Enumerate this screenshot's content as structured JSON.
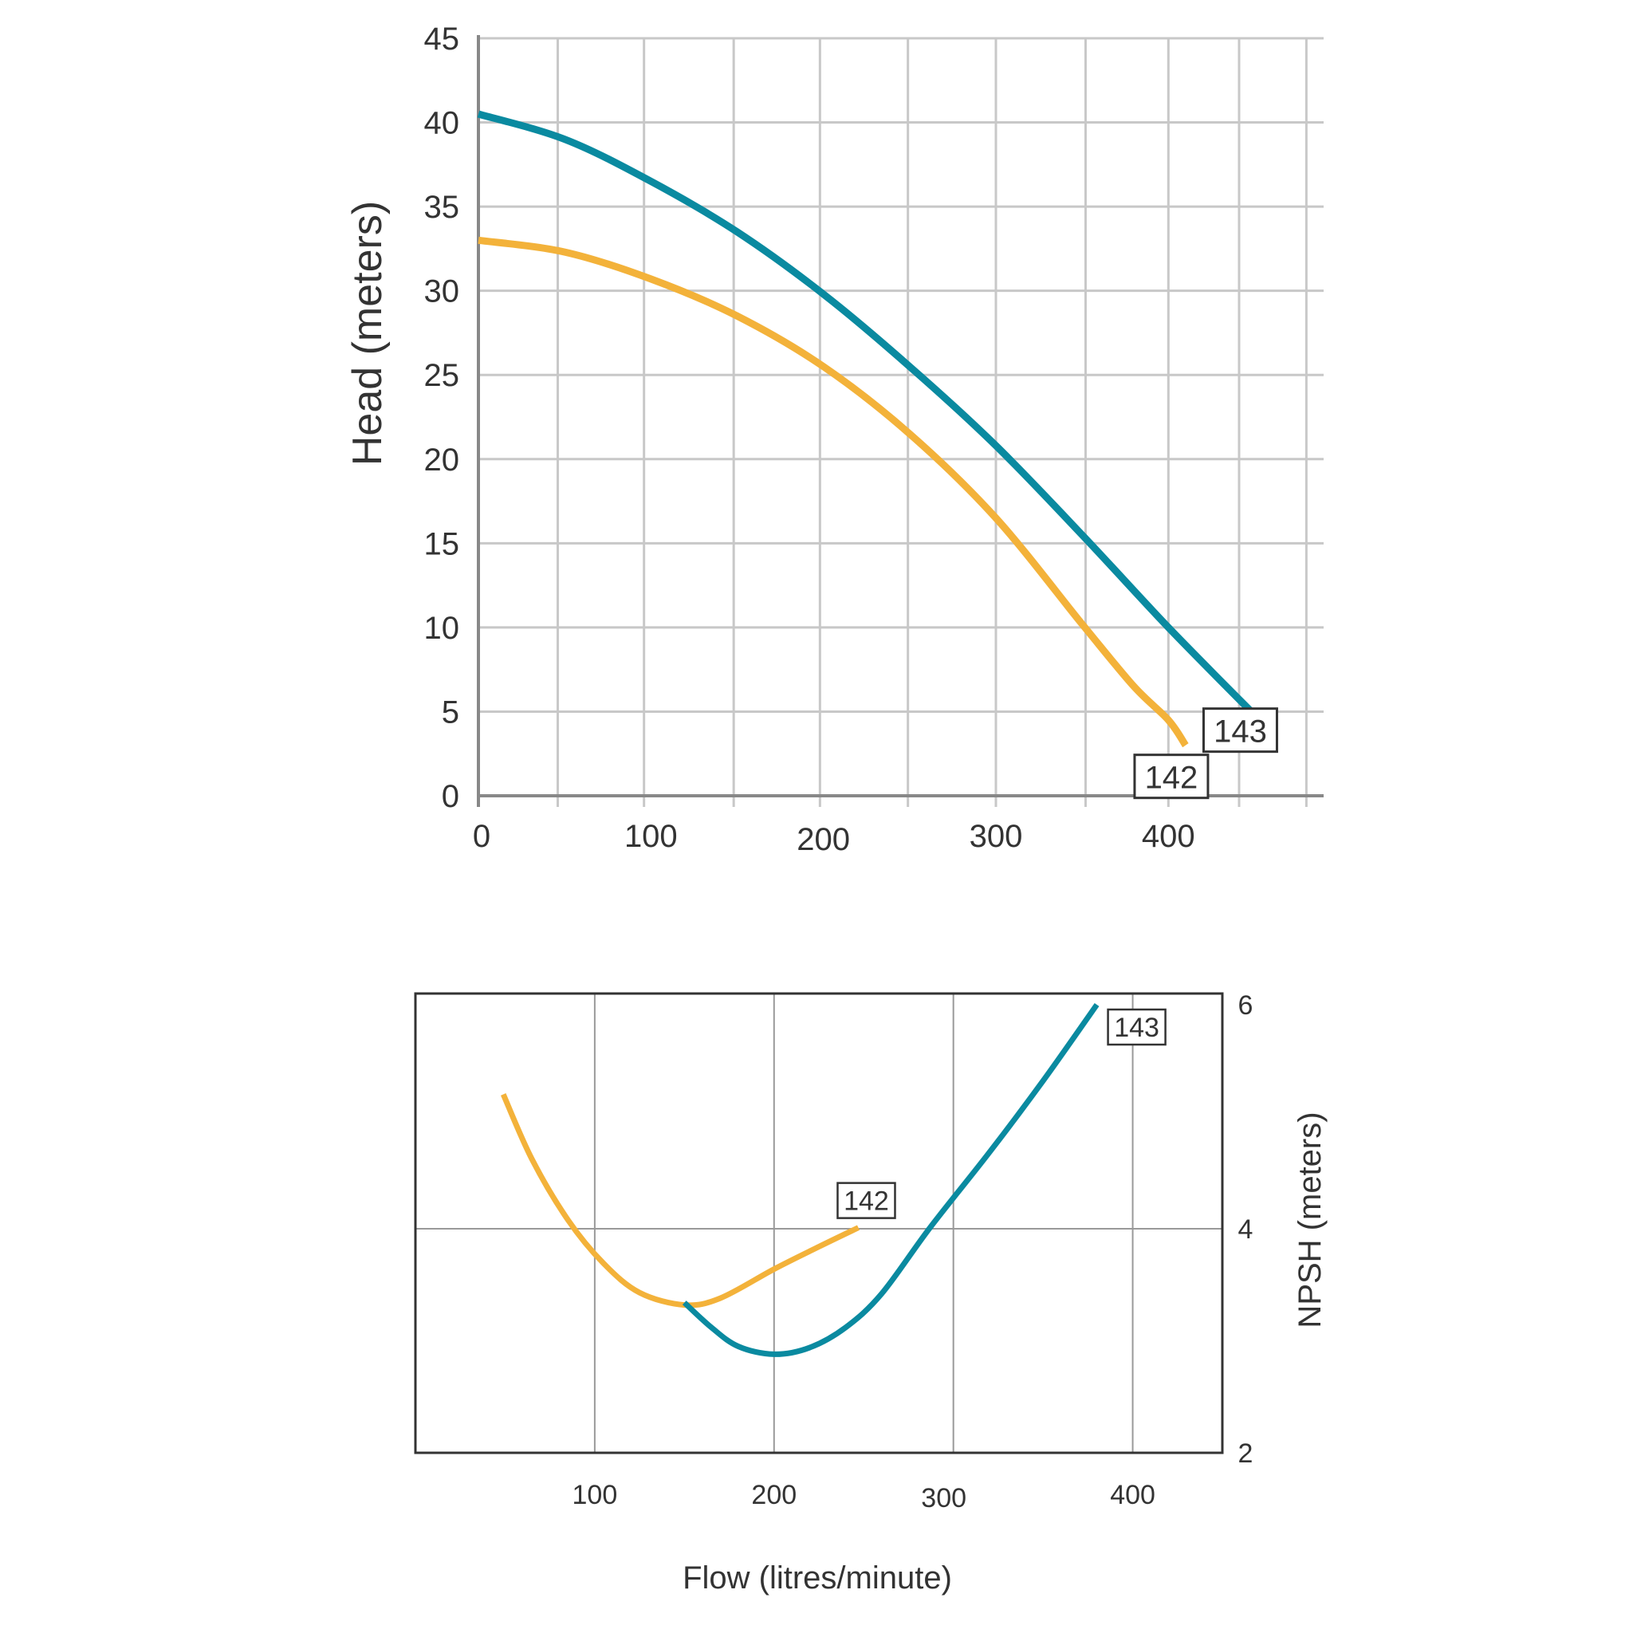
{
  "colors": {
    "series_142": "#F3B23A",
    "series_143": "#0A8AA0",
    "grid": "#c8c8c8",
    "axis": "#888888",
    "frame": "#333333",
    "text": "#333333"
  },
  "chart_data": [
    {
      "type": "line",
      "id": "head",
      "title": "",
      "xlabel": "",
      "ylabel": "Head (meters)",
      "xlim": [
        0,
        490
      ],
      "ylim": [
        0,
        45
      ],
      "x_ticks": [
        0,
        100,
        200,
        300,
        400
      ],
      "x_tick_labels": [
        "0",
        "100",
        "200",
        "300",
        "400"
      ],
      "y_ticks": [
        0,
        5,
        10,
        15,
        20,
        25,
        30,
        35,
        40,
        45
      ],
      "y_tick_labels": [
        "0",
        "5",
        "10",
        "15",
        "20",
        "25",
        "30",
        "35",
        "40",
        "45"
      ],
      "x_grid": [
        0,
        46,
        96,
        148,
        198,
        249,
        300,
        352,
        400,
        441,
        480
      ],
      "grid": true,
      "series": [
        {
          "name": "142",
          "color": "#F3B23A",
          "x": [
            0,
            50,
            100,
            150,
            200,
            250,
            300,
            350,
            380,
            400,
            410
          ],
          "y": [
            33,
            32.3,
            30.7,
            28.5,
            25.5,
            21.5,
            16.5,
            10.2,
            6.5,
            4.5,
            3.0
          ]
        },
        {
          "name": "143",
          "color": "#0A8AA0",
          "x": [
            0,
            50,
            100,
            150,
            200,
            250,
            300,
            350,
            400,
            450
          ],
          "y": [
            40.5,
            39.0,
            36.5,
            33.5,
            29.8,
            25.5,
            20.8,
            15.5,
            10.0,
            4.8
          ]
        }
      ]
    },
    {
      "type": "line",
      "id": "npsh",
      "title": "",
      "xlabel": "Flow (litres/minute)",
      "ylabel": "NPSH (meters)",
      "xlim": [
        0,
        450
      ],
      "ylim": [
        2,
        6.1
      ],
      "x_ticks": [
        100,
        200,
        300,
        400
      ],
      "x_tick_labels": [
        "100",
        "200",
        "300",
        "400"
      ],
      "y_ticks": [
        2,
        4,
        6
      ],
      "y_tick_labels": [
        "2",
        "4",
        "6"
      ],
      "y_axis_side": "right",
      "x_grid": [
        100,
        200,
        300,
        400
      ],
      "y_grid": [
        4
      ],
      "series": [
        {
          "name": "142",
          "color": "#F3B23A",
          "x": [
            49,
            65,
            85,
            105,
            125,
            150,
            170,
            200,
            225,
            247
          ],
          "y": [
            5.2,
            4.62,
            4.08,
            3.69,
            3.43,
            3.32,
            3.38,
            3.64,
            3.84,
            4.01
          ]
        },
        {
          "name": "143",
          "color": "#0A8AA0",
          "x": [
            150,
            165,
            180,
            200,
            220,
            240,
            260,
            287,
            320,
            350,
            380
          ],
          "y": [
            3.34,
            3.12,
            2.95,
            2.88,
            2.94,
            3.12,
            3.42,
            4.01,
            4.68,
            5.32,
            6.0
          ]
        }
      ]
    }
  ]
}
